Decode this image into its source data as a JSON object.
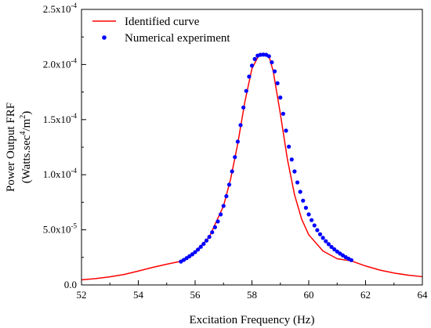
{
  "chart_data": {
    "type": "line",
    "xlabel": "Excitation Frequency (Hz)",
    "ylabel_line1": "Power Output FRF",
    "ylabel_line2_prefix": "(Watts.sec",
    "ylabel_line2_sup1": "4",
    "ylabel_line2_mid": "/m",
    "ylabel_line2_sup2": "2",
    "ylabel_line2_suffix": ")",
    "xlim": [
      52,
      64
    ],
    "ylim": [
      0,
      0.00025
    ],
    "x_ticks": [
      52,
      54,
      56,
      58,
      60,
      62,
      64
    ],
    "x_tick_labels": [
      "52",
      "54",
      "56",
      "58",
      "60",
      "62",
      "64"
    ],
    "y_ticks": [
      {
        "value": 0,
        "label": "0.0",
        "mantissa": "",
        "exponent": ""
      },
      {
        "value": 5e-05,
        "label": "",
        "mantissa": "5.0x10",
        "exponent": "-5"
      },
      {
        "value": 0.0001,
        "label": "",
        "mantissa": "1.0x10",
        "exponent": "-4"
      },
      {
        "value": 0.00015,
        "label": "",
        "mantissa": "1.5x10",
        "exponent": "-4"
      },
      {
        "value": 0.0002,
        "label": "",
        "mantissa": "2.0x10",
        "exponent": "-4"
      },
      {
        "value": 0.00025,
        "label": "",
        "mantissa": "2.5x10",
        "exponent": "-4"
      }
    ],
    "legend": {
      "placement": "top-left",
      "items": [
        {
          "label": "Identified curve",
          "marker": "line"
        },
        {
          "label": "Numerical experiment",
          "marker": "dot"
        }
      ]
    },
    "series": [
      {
        "name": "Identified curve",
        "style": "line",
        "color": "#ff0000",
        "x": [
          52.0,
          52.5,
          53.0,
          53.5,
          54.0,
          54.5,
          55.0,
          55.5,
          56.0,
          56.5,
          57.0,
          57.25,
          57.5,
          57.75,
          58.0,
          58.25,
          58.4,
          58.5,
          58.6,
          58.75,
          59.0,
          59.25,
          59.5,
          59.75,
          60.0,
          60.5,
          61.0,
          61.5,
          62.0,
          62.5,
          63.0,
          63.5,
          64.0
        ],
        "y": [
          4.6e-06,
          5.8e-06,
          7.4e-06,
          9.5e-06,
          1.26e-05,
          1.59e-05,
          1.88e-05,
          2.15e-05,
          2.98e-05,
          4.36e-05,
          7.17e-05,
          9.62e-05,
          0.000128,
          0.000166,
          0.0001963,
          0.0002087,
          0.000209,
          0.0002088,
          0.0002075,
          0.0001938,
          0.0001553,
          0.0001138,
          8.18e-05,
          5.97e-05,
          4.55e-05,
          3.08e-05,
          2.38e-05,
          2.18e-05,
          1.72e-05,
          1.35e-05,
          1.08e-05,
          8.9e-06,
          7.5e-06
        ]
      },
      {
        "name": "Numerical experiment",
        "style": "dots",
        "color": "#0000ff",
        "x": [
          55.5,
          55.6,
          55.7,
          55.8,
          55.9,
          56.0,
          56.1,
          56.2,
          56.3,
          56.4,
          56.5,
          56.6,
          56.7,
          56.8,
          56.9,
          57.0,
          57.1,
          57.2,
          57.3,
          57.4,
          57.5,
          57.6,
          57.7,
          57.8,
          57.9,
          58.0,
          58.1,
          58.2,
          58.3,
          58.4,
          58.5,
          58.6,
          58.7,
          58.8,
          58.9,
          59.0,
          59.1,
          59.2,
          59.3,
          59.4,
          59.5,
          59.6,
          59.7,
          59.8,
          59.9,
          60.0,
          60.1,
          60.2,
          60.3,
          60.4,
          60.5,
          60.6,
          60.7,
          60.8,
          60.9,
          61.0,
          61.1,
          61.2,
          61.3,
          61.4,
          61.5
        ],
        "y": [
          2.12e-05,
          2.27e-05,
          2.43e-05,
          2.6e-05,
          2.78e-05,
          2.98e-05,
          3.21e-05,
          3.46e-05,
          3.73e-05,
          4.03e-05,
          4.36e-05,
          4.78e-05,
          5.24e-05,
          5.76e-05,
          6.4e-05,
          7.17e-05,
          8.05e-05,
          9.1e-05,
          0.000103,
          0.000116,
          0.00013,
          0.000145,
          0.000161,
          0.000176,
          0.000189,
          0.000199,
          0.000205,
          0.000208,
          0.0002088,
          0.000209,
          0.0002088,
          0.0002075,
          0.000202,
          0.0001938,
          0.000183,
          0.00017,
          0.0001553,
          0.00014,
          0.0001255,
          0.0001138,
          0.000103,
          9.3e-05,
          8.45e-05,
          7.65e-05,
          7e-05,
          6.4e-05,
          5.88e-05,
          5.4e-05,
          4.97e-05,
          4.6e-05,
          4.27e-05,
          3.97e-05,
          3.7e-05,
          3.45e-05,
          3.23e-05,
          3.03e-05,
          2.85e-05,
          2.68e-05,
          2.52e-05,
          2.38e-05,
          2.25e-05
        ]
      }
    ]
  }
}
